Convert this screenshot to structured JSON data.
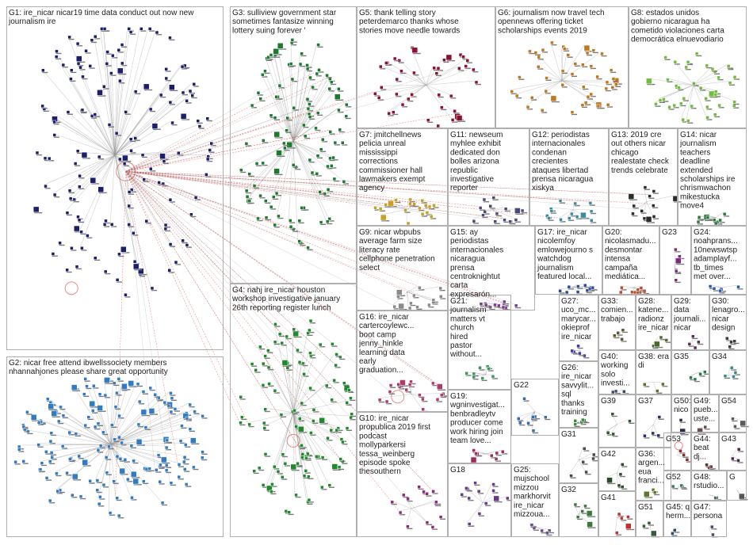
{
  "colors": {
    "edge_default": "#9a9a9a",
    "edge_highlight": "#e03a3a",
    "panel_border": "#b0b0b0",
    "label_text": "#222222",
    "groups": {
      "G1": "#1a1f6b",
      "G2": "#2f7cc4",
      "G3": "#1b7a2e",
      "G4": "#1e8a2a",
      "G5": "#8a1030",
      "G6": "#c07820",
      "G7": "#c9a020",
      "G8": "#6fbf3a",
      "G9": "#8a8a8a",
      "G10": "#8a2a7a",
      "G11": "#4a4a7a",
      "G12": "#3a8aa0",
      "G13": "#2a2a2a",
      "G14": "#2a7a3a",
      "G15": "#7a3a8a",
      "G16": "#b03a6a",
      "G17": "#2a4a9a",
      "G18": "#6a3a8a",
      "G19": "#a02a5a",
      "G20": "#c04a2a",
      "G21": "#3a9a5a",
      "G22": "#3a6aaa",
      "G23": "#7a2a7a",
      "G24": "#2a5aaa",
      "G25": "#6a4a8a",
      "G26": "#3a8a3a",
      "G27": "#3a3a9a",
      "G28": "#4a6a2a",
      "G29": "#5a2a5a",
      "G30": "#3a3a3a",
      "G31": "#4a4a4a",
      "G32": "#3a7a3a",
      "G33": "#5a5a2a",
      "G34": "#3a8a8a",
      "G35": "#2a7a4a",
      "G36": "#5a7a2a",
      "G37": "#2a2a6a",
      "G38": "#6a6a2a",
      "G39": "#2a5a2a",
      "G40": "#3a4a6a",
      "G41": "#c03030",
      "G42": "#2a4a2a",
      "G43": "#4a2a4a",
      "G44": "#6a2a2a",
      "G45": "#2a4a6a",
      "G47": "#4a4a6a",
      "G48": "#4a6a6a",
      "G49": "#6a4a4a",
      "G50": "#2a2a4a",
      "G51": "#3a5a3a",
      "G52": "#3a7a6a",
      "G53": "#8a2a2a",
      "G54": "#5a5a5a"
    }
  },
  "groups": [
    {
      "id": "G1",
      "lines": [
        "G1: ire_nicar nicar19 time data conduct out now new",
        "journalism ire"
      ]
    },
    {
      "id": "G2",
      "lines": [
        "G2: nicar free attend ibwellssociety members",
        "nhannahjones please share great opportunity"
      ]
    },
    {
      "id": "G3",
      "lines": [
        "G3: sulliview government star",
        "sometimes fantasize winning",
        "lottery suing forever '"
      ]
    },
    {
      "id": "G4",
      "lines": [
        "G4: nahj ire_nicar houston",
        "workshop investigative january",
        "26th reporting register lunch"
      ]
    },
    {
      "id": "G5",
      "lines": [
        "G5: thank telling story",
        "peterdemarco thanks whose",
        "stories move needle towards"
      ]
    },
    {
      "id": "G6",
      "lines": [
        "G6: journalism now travel tech",
        "opennews offering ticket",
        "scholarships events 2019"
      ]
    },
    {
      "id": "G7",
      "lines": [
        "G7: jmitchellnews",
        "pelicia unreal",
        "mississippi",
        "corrections",
        "commissioner hall",
        "lawmakers exempt",
        "agency"
      ]
    },
    {
      "id": "G8",
      "lines": [
        "G8: estados unidos",
        "gobierno nicaragua ha",
        "cometido violaciones carta",
        "democrática elnuevodiario"
      ]
    },
    {
      "id": "G9",
      "lines": [
        "G9: nicar wbpubs",
        "average farm size",
        "literacy rate",
        "cellphone penetration",
        "select"
      ]
    },
    {
      "id": "G10",
      "lines": [
        "G10: ire_nicar",
        "propublica 2019 first",
        "podcast",
        "mollyparkersi",
        "tessa_weinberg",
        "episode spoke",
        "thesouthern"
      ]
    },
    {
      "id": "G11",
      "lines": [
        "G11: newseum",
        "myhlee exhibit",
        "dedicated don",
        "bolles arizona",
        "republic",
        "investigative",
        "reporter"
      ]
    },
    {
      "id": "G12",
      "lines": [
        "G12: periodistas",
        "internacionales",
        "condenan",
        "crecientes",
        "ataques libertad",
        "prensa nicaragua",
        "xiskya"
      ]
    },
    {
      "id": "G13",
      "lines": [
        "G13: 2019 cre",
        "out others nicar",
        "chicago",
        "realestate check",
        "trends celebrate"
      ]
    },
    {
      "id": "G14",
      "lines": [
        "G14: nicar",
        "journalism",
        "teachers",
        "deadline",
        "extended",
        "scholarships ire",
        "chrismwachon",
        "mikestucka",
        "move4"
      ]
    },
    {
      "id": "G15",
      "lines": [
        "G15: ay",
        "periodistas",
        "internacionales",
        "nicaragua",
        "prensa",
        "centroknightut",
        "carta",
        "expresarón..."
      ]
    },
    {
      "id": "G16",
      "lines": [
        "G16: ire_nicar",
        "cartercoylewc...",
        "boot camp",
        "jenny_hinkle",
        "learning data",
        "early",
        "graduation..."
      ]
    },
    {
      "id": "G17",
      "lines": [
        "G17: ire_nicar",
        "nicolemfoy",
        "emlowejourno s",
        "watchdog",
        "journalism",
        "featured local..."
      ]
    },
    {
      "id": "G18",
      "lines": [
        "G18"
      ]
    },
    {
      "id": "G19",
      "lines": [
        "G19:",
        "wgninvestigat...",
        "benbradleytv",
        "producer come",
        "work hiring join",
        "team love..."
      ]
    },
    {
      "id": "G20",
      "lines": [
        "G20:",
        "nicolasmadu...",
        "desmontar",
        "intensa",
        "campaña",
        "mediática..."
      ]
    },
    {
      "id": "G21",
      "lines": [
        "G21:",
        "journalism",
        "matters vt",
        "church",
        "hired",
        "pastor",
        "without..."
      ]
    },
    {
      "id": "G22",
      "lines": [
        "G22"
      ]
    },
    {
      "id": "G23",
      "lines": [
        "G23"
      ]
    },
    {
      "id": "G24",
      "lines": [
        "G24:",
        "noahprans...",
        "10newswtsp",
        "adamplayf...",
        "tb_times",
        "met over..."
      ]
    },
    {
      "id": "G25",
      "lines": [
        "G25:",
        "mujschool",
        "mizzou",
        "markhorvit",
        "ire_nicar",
        "mizzoua..."
      ]
    },
    {
      "id": "G26",
      "lines": [
        "G26:",
        "ire_nicar",
        "savvylit...",
        "sql",
        "thanks",
        "training"
      ]
    },
    {
      "id": "G27",
      "lines": [
        "G27:",
        "uco_mc...",
        "marycar...",
        "okieprof",
        "ire_nicar"
      ]
    },
    {
      "id": "G28",
      "lines": [
        "G28:",
        "katene...",
        "radionz",
        "ire_nicar"
      ]
    },
    {
      "id": "G29",
      "lines": [
        "G29:",
        "data",
        "journali...",
        "nicar"
      ]
    },
    {
      "id": "G30",
      "lines": [
        "G30:",
        "lenagro...",
        "nicar",
        "design"
      ]
    },
    {
      "id": "G31",
      "lines": [
        "G31"
      ]
    },
    {
      "id": "G32",
      "lines": [
        "G32"
      ]
    },
    {
      "id": "G33",
      "lines": [
        "G33:",
        "comien...",
        "trabajo"
      ]
    },
    {
      "id": "G34",
      "lines": [
        "G34"
      ]
    },
    {
      "id": "G35",
      "lines": [
        "G35"
      ]
    },
    {
      "id": "G36",
      "lines": [
        "G36:",
        "argen...",
        "eua",
        "franci..."
      ]
    },
    {
      "id": "G37",
      "lines": [
        "G37"
      ]
    },
    {
      "id": "G38",
      "lines": [
        "G38: era",
        "di"
      ]
    },
    {
      "id": "G39",
      "lines": [
        "G39"
      ]
    },
    {
      "id": "G40",
      "lines": [
        "G40:",
        "working",
        "solo",
        "investi..."
      ]
    },
    {
      "id": "G41",
      "lines": [
        "G41"
      ]
    },
    {
      "id": "G42",
      "lines": [
        "G42"
      ]
    },
    {
      "id": "G43",
      "lines": [
        "G43"
      ]
    },
    {
      "id": "G44",
      "lines": [
        "G44:",
        "beat",
        "dj..."
      ]
    },
    {
      "id": "G45",
      "lines": [
        "G45: q",
        "herm..."
      ]
    },
    {
      "id": "G47",
      "lines": [
        "G47:",
        "persona"
      ]
    },
    {
      "id": "G48",
      "lines": [
        "G48:",
        "rstudio..."
      ]
    },
    {
      "id": "G49",
      "lines": [
        "G49:",
        "pueb...",
        "uste..."
      ]
    },
    {
      "id": "G50",
      "lines": [
        "G50:",
        "nico"
      ]
    },
    {
      "id": "G51",
      "lines": [
        "G51"
      ]
    },
    {
      "id": "G52",
      "lines": [
        "G52"
      ]
    },
    {
      "id": "G53",
      "lines": [
        "G53"
      ]
    },
    {
      "id": "G54",
      "lines": [
        "G54"
      ]
    },
    {
      "id": "G",
      "lines": [
        "G"
      ]
    }
  ]
}
